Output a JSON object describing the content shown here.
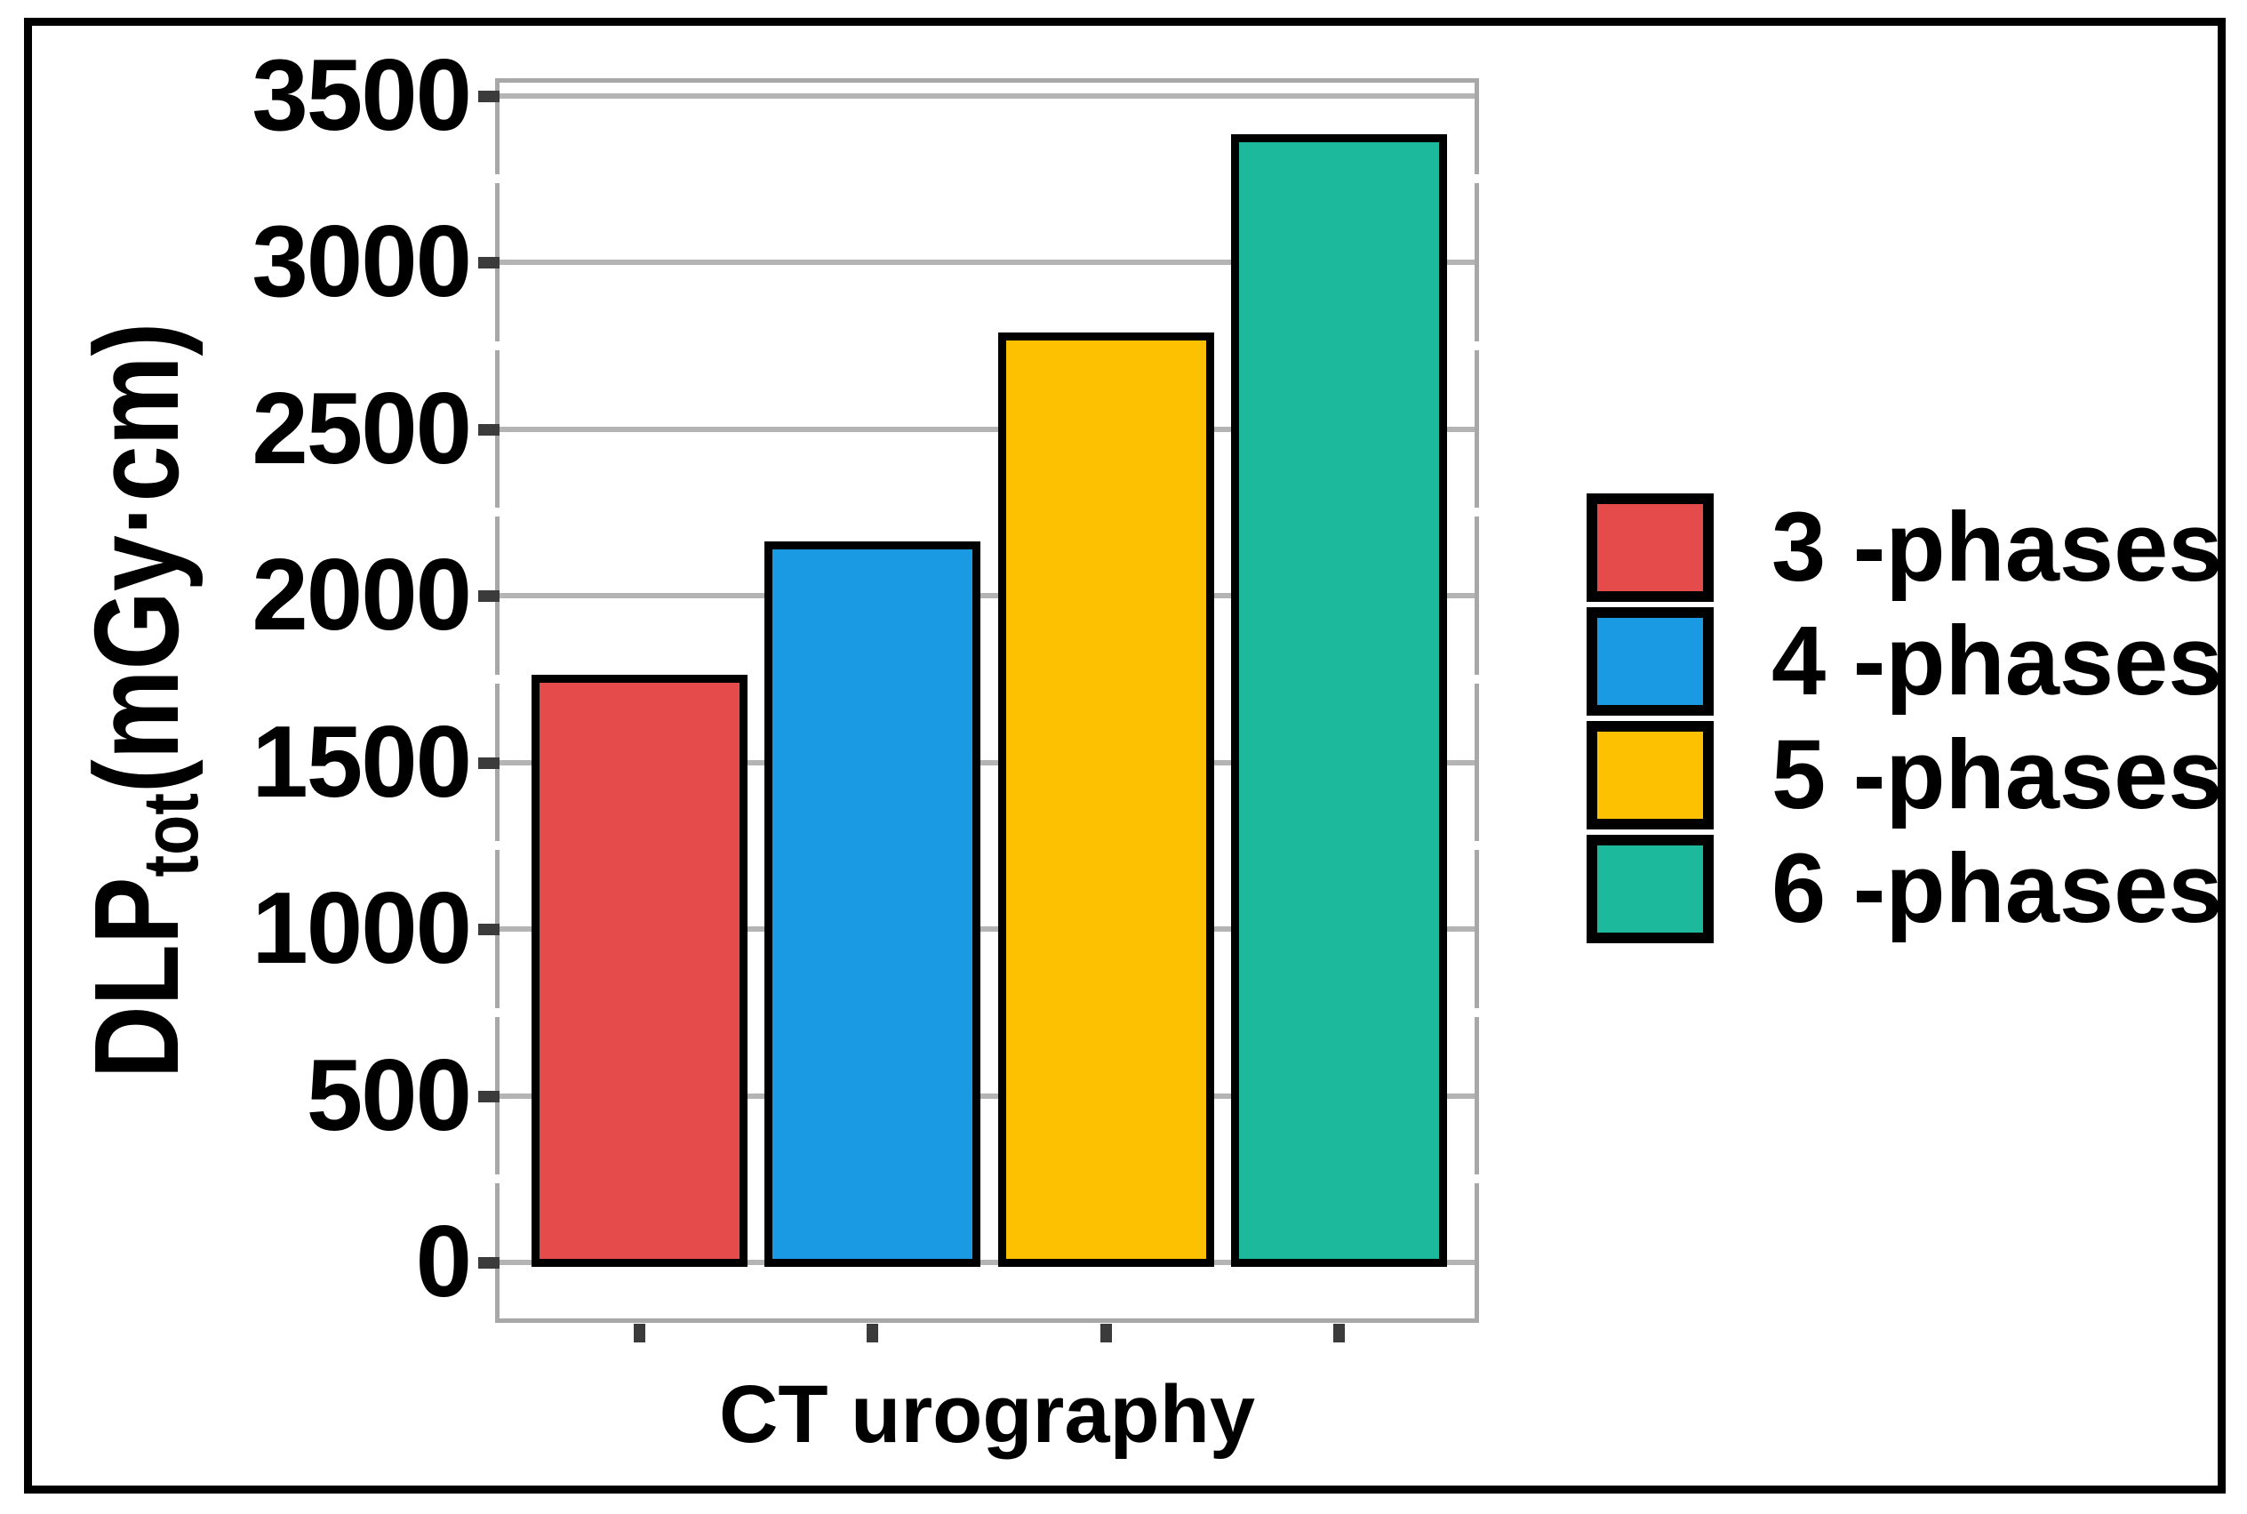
{
  "figure": {
    "background": "#FFFFFF",
    "border_color": "#000000"
  },
  "chart_data": {
    "type": "bar",
    "title": "",
    "xlabel": "CT urography",
    "ylabel": "DLPtot(mGy·cm)",
    "ylabel_parts": {
      "main": "DLP",
      "subscript": "tot",
      "unit": "(mGy·cm)"
    },
    "categories": [
      "3 -phases",
      "4 -phases",
      "5 -phases",
      "6 -phases"
    ],
    "series": [
      {
        "name": "DLPtot",
        "values": [
          1750,
          2150,
          2775,
          3370
        ]
      }
    ],
    "bar_colors": [
      "#E54B4B",
      "#1A9AE2",
      "#FDC101",
      "#1CB99C"
    ],
    "ylim": [
      0,
      3500
    ],
    "yticks": [
      0,
      500,
      1000,
      1500,
      2000,
      2500,
      3000,
      3500
    ],
    "ytick_labels": [
      "0",
      "500",
      "1000",
      "1500",
      "2000",
      "2500",
      "3000",
      "3500"
    ],
    "grid": true,
    "gridline_color": "#B4B4B4",
    "axis_color": "#A8A8A8",
    "tick_color": "#3B3B3B",
    "legend_position": "right",
    "legend": [
      {
        "label": "3 -phases",
        "color": "#E54B4B"
      },
      {
        "label": "4 -phases",
        "color": "#1A9AE2"
      },
      {
        "label": "5 -phases",
        "color": "#FDC101"
      },
      {
        "label": "6 -phases",
        "color": "#1CB99C"
      }
    ]
  }
}
